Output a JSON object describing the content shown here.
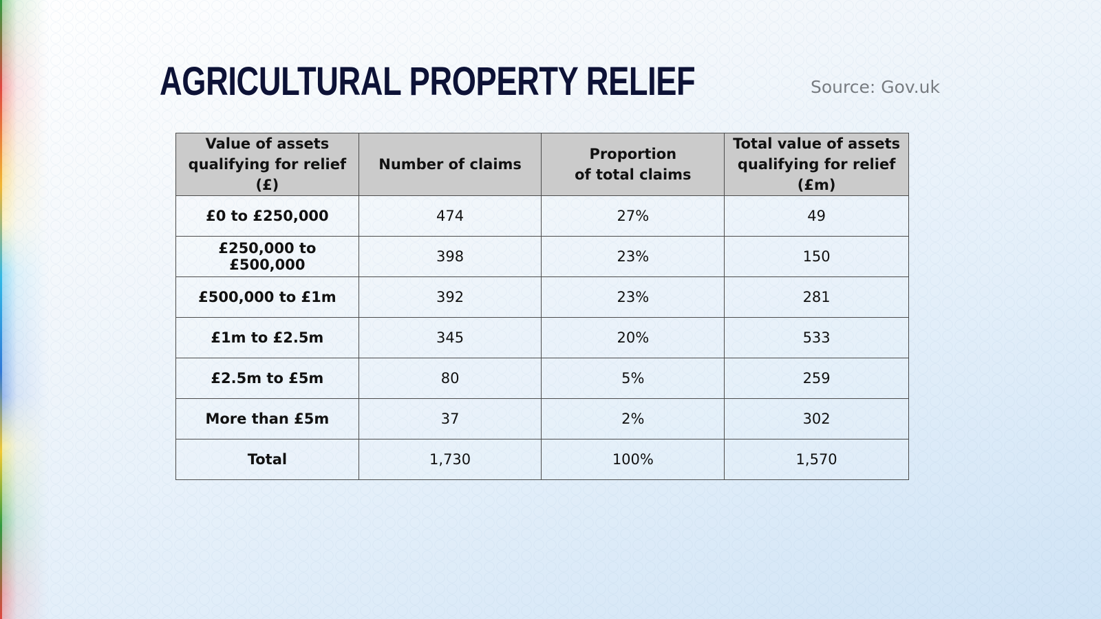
{
  "title": "AGRICULTURAL PROPERTY RELIEF",
  "source": "Source: Gov.uk",
  "colors": {
    "title": "#0d1236",
    "header_bg": "#cbcbcb",
    "source_text": "#777b80"
  },
  "chart_data": {
    "type": "table",
    "title": "AGRICULTURAL PROPERTY RELIEF",
    "source": "Source: Gov.uk",
    "columns": [
      "Value of assets qualifying for relief (£)",
      "Number of claims",
      "Proportion of total claims",
      "Total value of assets qualifying for relief (£m)"
    ],
    "rows": [
      [
        "£0 to £250,000",
        "474",
        "27%",
        "49"
      ],
      [
        "£250,000 to £500,000",
        "398",
        "23%",
        "150"
      ],
      [
        "£500,000 to £1m",
        "392",
        "23%",
        "281"
      ],
      [
        "£1m to £2.5m",
        "345",
        "20%",
        "533"
      ],
      [
        "£2.5m to £5m",
        "80",
        "5%",
        "259"
      ],
      [
        "More than £5m",
        "37",
        "2%",
        "302"
      ],
      [
        "Total",
        "1,730",
        "100%",
        "1,570"
      ]
    ]
  }
}
